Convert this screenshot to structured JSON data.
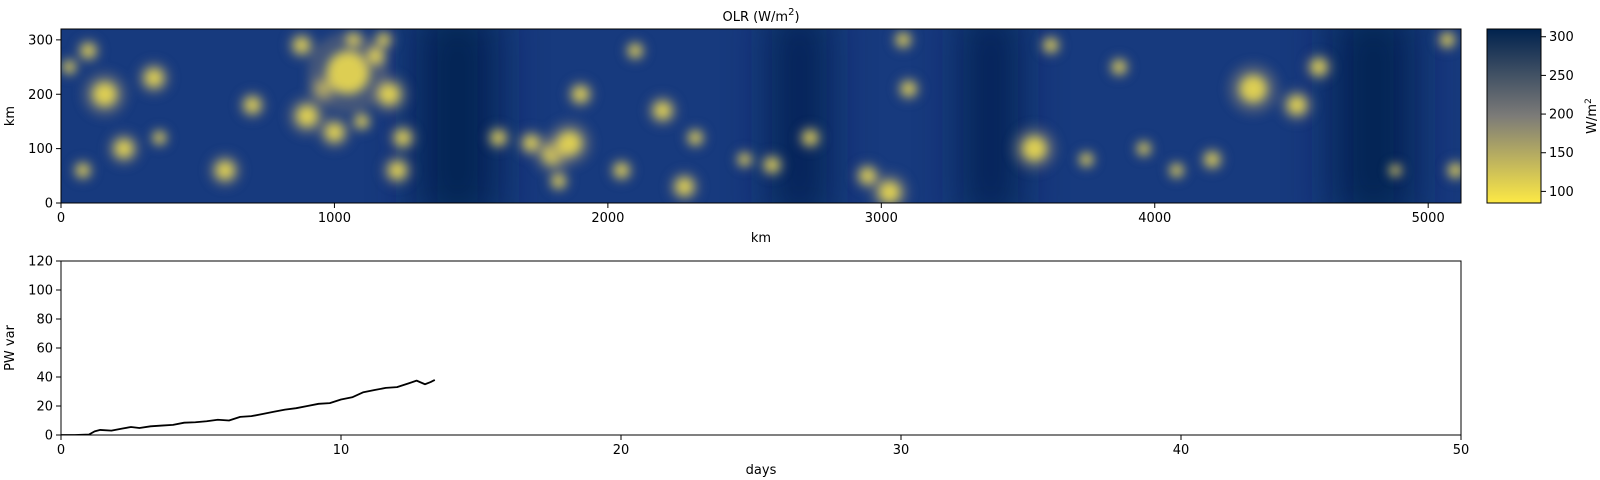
{
  "chart_data": [
    {
      "type": "heatmap",
      "title": "OLR (W/m²)",
      "title_base": "OLR (W/m",
      "title_sup": "2",
      "title_end": ")",
      "xlabel": "km",
      "ylabel": "km",
      "xlim": [
        0,
        5120
      ],
      "ylim": [
        0,
        320
      ],
      "xticks": [
        0,
        1000,
        2000,
        3000,
        4000,
        5000
      ],
      "yticks": [
        0,
        100,
        200,
        300
      ],
      "colormap": "cividis_r",
      "colors": {
        "low": "#fde945",
        "mid": "#7c7b78",
        "high": "#00224e"
      },
      "colorbar": {
        "label": "W/m²",
        "label_base": "W/m",
        "label_sup": "2",
        "range": [
          85,
          310
        ],
        "ticks": [
          100,
          150,
          200,
          250,
          300
        ]
      },
      "bright_cells": [
        [
          100,
          280,
          22
        ],
        [
          30,
          250,
          18
        ],
        [
          160,
          200,
          40
        ],
        [
          230,
          100,
          30
        ],
        [
          80,
          60,
          20
        ],
        [
          340,
          230,
          30
        ],
        [
          360,
          120,
          18
        ],
        [
          600,
          60,
          30
        ],
        [
          700,
          180,
          25
        ],
        [
          900,
          160,
          35
        ],
        [
          960,
          210,
          28
        ],
        [
          1050,
          240,
          70
        ],
        [
          1000,
          130,
          30
        ],
        [
          1100,
          150,
          20
        ],
        [
          1150,
          270,
          25
        ],
        [
          1200,
          200,
          35
        ],
        [
          1250,
          120,
          25
        ],
        [
          1230,
          60,
          28
        ],
        [
          1070,
          300,
          20
        ],
        [
          880,
          290,
          25
        ],
        [
          1180,
          300,
          20
        ],
        [
          1600,
          120,
          22
        ],
        [
          1720,
          110,
          25
        ],
        [
          1800,
          90,
          35
        ],
        [
          1860,
          110,
          40
        ],
        [
          1820,
          40,
          20
        ],
        [
          1900,
          200,
          25
        ],
        [
          2050,
          60,
          22
        ],
        [
          2100,
          280,
          20
        ],
        [
          2200,
          170,
          28
        ],
        [
          2280,
          30,
          28
        ],
        [
          2320,
          120,
          20
        ],
        [
          2500,
          80,
          18
        ],
        [
          2600,
          70,
          22
        ],
        [
          2740,
          120,
          22
        ],
        [
          2950,
          50,
          25
        ],
        [
          3030,
          20,
          35
        ],
        [
          3080,
          300,
          20
        ],
        [
          3100,
          210,
          22
        ],
        [
          3560,
          100,
          40
        ],
        [
          3620,
          290,
          20
        ],
        [
          3750,
          80,
          18
        ],
        [
          3870,
          250,
          20
        ],
        [
          3960,
          100,
          18
        ],
        [
          4080,
          60,
          18
        ],
        [
          4210,
          80,
          22
        ],
        [
          4360,
          210,
          45
        ],
        [
          4520,
          180,
          30
        ],
        [
          4600,
          250,
          25
        ],
        [
          4880,
          60,
          15
        ],
        [
          5070,
          300,
          20
        ],
        [
          5100,
          60,
          20
        ]
      ],
      "dark_bands": [
        [
          1300,
          1600
        ],
        [
          2600,
          2800
        ],
        [
          3300,
          3500
        ],
        [
          4650,
          4950
        ]
      ]
    },
    {
      "type": "line",
      "title": "",
      "xlabel": "days",
      "ylabel": "PW var",
      "xlim": [
        0,
        50
      ],
      "ylim": [
        0,
        120
      ],
      "xticks": [
        0,
        10,
        20,
        30,
        40,
        50
      ],
      "yticks": [
        0,
        20,
        40,
        60,
        80,
        100,
        120
      ],
      "color": "#000000",
      "x": [
        0,
        0.5,
        1.0,
        1.2,
        1.4,
        1.8,
        2.2,
        2.5,
        2.8,
        3.2,
        3.6,
        4.0,
        4.4,
        4.8,
        5.2,
        5.6,
        6.0,
        6.4,
        6.8,
        7.2,
        7.6,
        8.0,
        8.4,
        8.8,
        9.2,
        9.6,
        10.0,
        10.4,
        10.8,
        11.2,
        11.6,
        12.0,
        12.4,
        12.7,
        13.0,
        13.2,
        13.35
      ],
      "y": [
        0,
        0,
        0.3,
        2.5,
        3.5,
        3.0,
        4.5,
        5.5,
        4.8,
        6.0,
        6.5,
        7.0,
        8.5,
        8.8,
        9.5,
        10.5,
        10.0,
        12.5,
        13.0,
        14.5,
        16.0,
        17.5,
        18.5,
        20.0,
        21.5,
        22.0,
        24.5,
        26.0,
        29.5,
        31.0,
        32.5,
        33.0,
        35.5,
        37.5,
        35.0,
        36.5,
        38.0
      ]
    }
  ]
}
